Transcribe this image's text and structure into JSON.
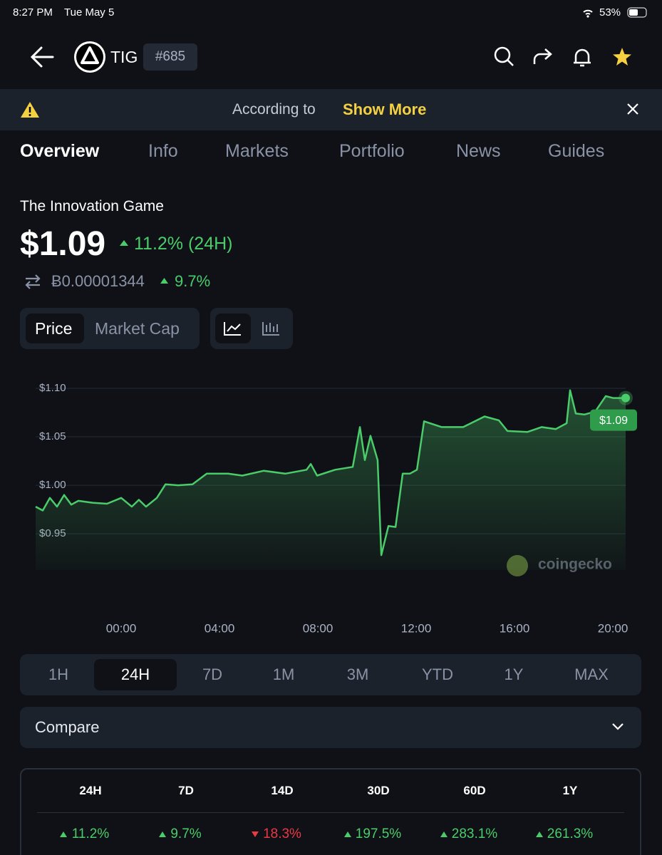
{
  "status": {
    "time": "8:27 PM",
    "date": "Tue May 5",
    "battery": "53%"
  },
  "header": {
    "symbol": "TIG",
    "rank": "#685"
  },
  "banner": {
    "text": "According to",
    "link": "Show More"
  },
  "tabs": [
    "Overview",
    "Info",
    "Markets",
    "Portfolio",
    "News",
    "Guides"
  ],
  "coin": {
    "name": "The Innovation Game",
    "price": "$1.09",
    "change": "11.2% (24H)",
    "btc_price": "Ƀ0.00001344",
    "btc_change": "9.7%"
  },
  "toggles": [
    "Price",
    "Market Cap"
  ],
  "ranges": [
    "1H",
    "24H",
    "7D",
    "1M",
    "3M",
    "YTD",
    "1Y",
    "MAX"
  ],
  "compare": "Compare",
  "stats": [
    {
      "period": "24H",
      "change": "11.2%",
      "color": "#4bcc6a"
    },
    {
      "period": "7D",
      "change": "9.7%",
      "color": "#4bcc6a"
    },
    {
      "period": "14D",
      "change": "18.3%",
      "color": "#ea3943"
    },
    {
      "period": "30D",
      "change": "197.5%",
      "color": "#4bcc6a"
    },
    {
      "period": "60D",
      "change": "283.1%",
      "color": "#4bcc6a"
    },
    {
      "period": "1Y",
      "change": "261.3%",
      "color": "#4bcc6a"
    }
  ],
  "chart_data": {
    "type": "line",
    "watermark": "coingecko",
    "x": [
      -3.48,
      -3.19,
      -2.9,
      -2.61,
      -2.32,
      -2.03,
      -1.74,
      -1.16,
      -0.58,
      0,
      0.43,
      0.72,
      1.01,
      1.45,
      1.8,
      2.32,
      2.9,
      3.48,
      4.35,
      4.93,
      5.8,
      6.67,
      7.54,
      7.71,
      7.97,
      8.7,
      9.42,
      9.71,
      9.91,
      10.14,
      10.43,
      10.58,
      10.87,
      11.16,
      11.45,
      11.74,
      12.03,
      12.32,
      13.04,
      13.91,
      14.78,
      15.36,
      15.71,
      16.52,
      17.1,
      17.68,
      18.12,
      18.26,
      18.49,
      18.84,
      19.28,
      19.71,
      20,
      20.52
    ],
    "series": [
      {
        "name": "Price",
        "color": "#4bcc6a",
        "values": [
          0.978,
          0.974,
          0.987,
          0.978,
          0.99,
          0.98,
          0.984,
          0.982,
          0.981,
          0.987,
          0.978,
          0.985,
          0.978,
          0.987,
          1.001,
          1.0,
          1.001,
          1.012,
          1.012,
          1.01,
          1.015,
          1.012,
          1.016,
          1.022,
          1.01,
          1.016,
          1.019,
          1.06,
          1.026,
          1.051,
          1.026,
          0.928,
          0.958,
          0.957,
          1.012,
          1.012,
          1.016,
          1.066,
          1.06,
          1.06,
          1.071,
          1.067,
          1.056,
          1.055,
          1.06,
          1.058,
          1.064,
          1.098,
          1.074,
          1.073,
          1.076,
          1.092,
          1.09,
          1.09
        ]
      }
    ],
    "xlim": [
      -3.48,
      20.52
    ],
    "xticks": [
      {
        "value": 0,
        "label": "00:00"
      },
      {
        "value": 4,
        "label": "04:00"
      },
      {
        "value": 8,
        "label": "08:00"
      },
      {
        "value": 12,
        "label": "12:00"
      },
      {
        "value": 16,
        "label": "16:00"
      },
      {
        "value": 20,
        "label": "20:00"
      }
    ],
    "ylim": [
      0.92,
      1.1
    ],
    "yticks": [
      {
        "value": 0.95,
        "label": "$0.95"
      },
      {
        "value": 1.0,
        "label": "$1.00"
      },
      {
        "value": 1.05,
        "label": "$1.05"
      },
      {
        "value": 1.1,
        "label": "$1.10"
      }
    ],
    "grid": true
  }
}
